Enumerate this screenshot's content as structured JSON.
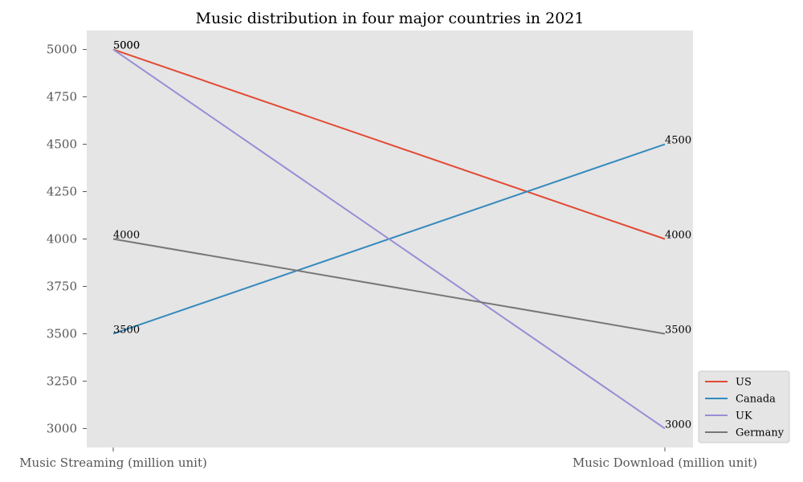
{
  "chart_data": {
    "type": "line",
    "title": "Music distribution in four major countries in 2021",
    "categories": [
      "Music Streaming (million unit)",
      "Music Download (million unit)"
    ],
    "xlabel": "",
    "ylabel": "",
    "ylim": [
      2900,
      5100
    ],
    "yticks": [
      3000,
      3250,
      3500,
      3750,
      4000,
      4250,
      4500,
      4750,
      5000
    ],
    "grid": false,
    "legend_position": "outside-bottom-right",
    "background": "#e5e5e5",
    "series": [
      {
        "name": "US",
        "values": [
          5000,
          4000
        ],
        "color": "#e24a33"
      },
      {
        "name": "Canada",
        "values": [
          3500,
          4500
        ],
        "color": "#348abd"
      },
      {
        "name": "UK",
        "values": [
          5000,
          3000
        ],
        "color": "#988ed5"
      },
      {
        "name": "Germany",
        "values": [
          4000,
          3500
        ],
        "color": "#777777"
      }
    ]
  }
}
